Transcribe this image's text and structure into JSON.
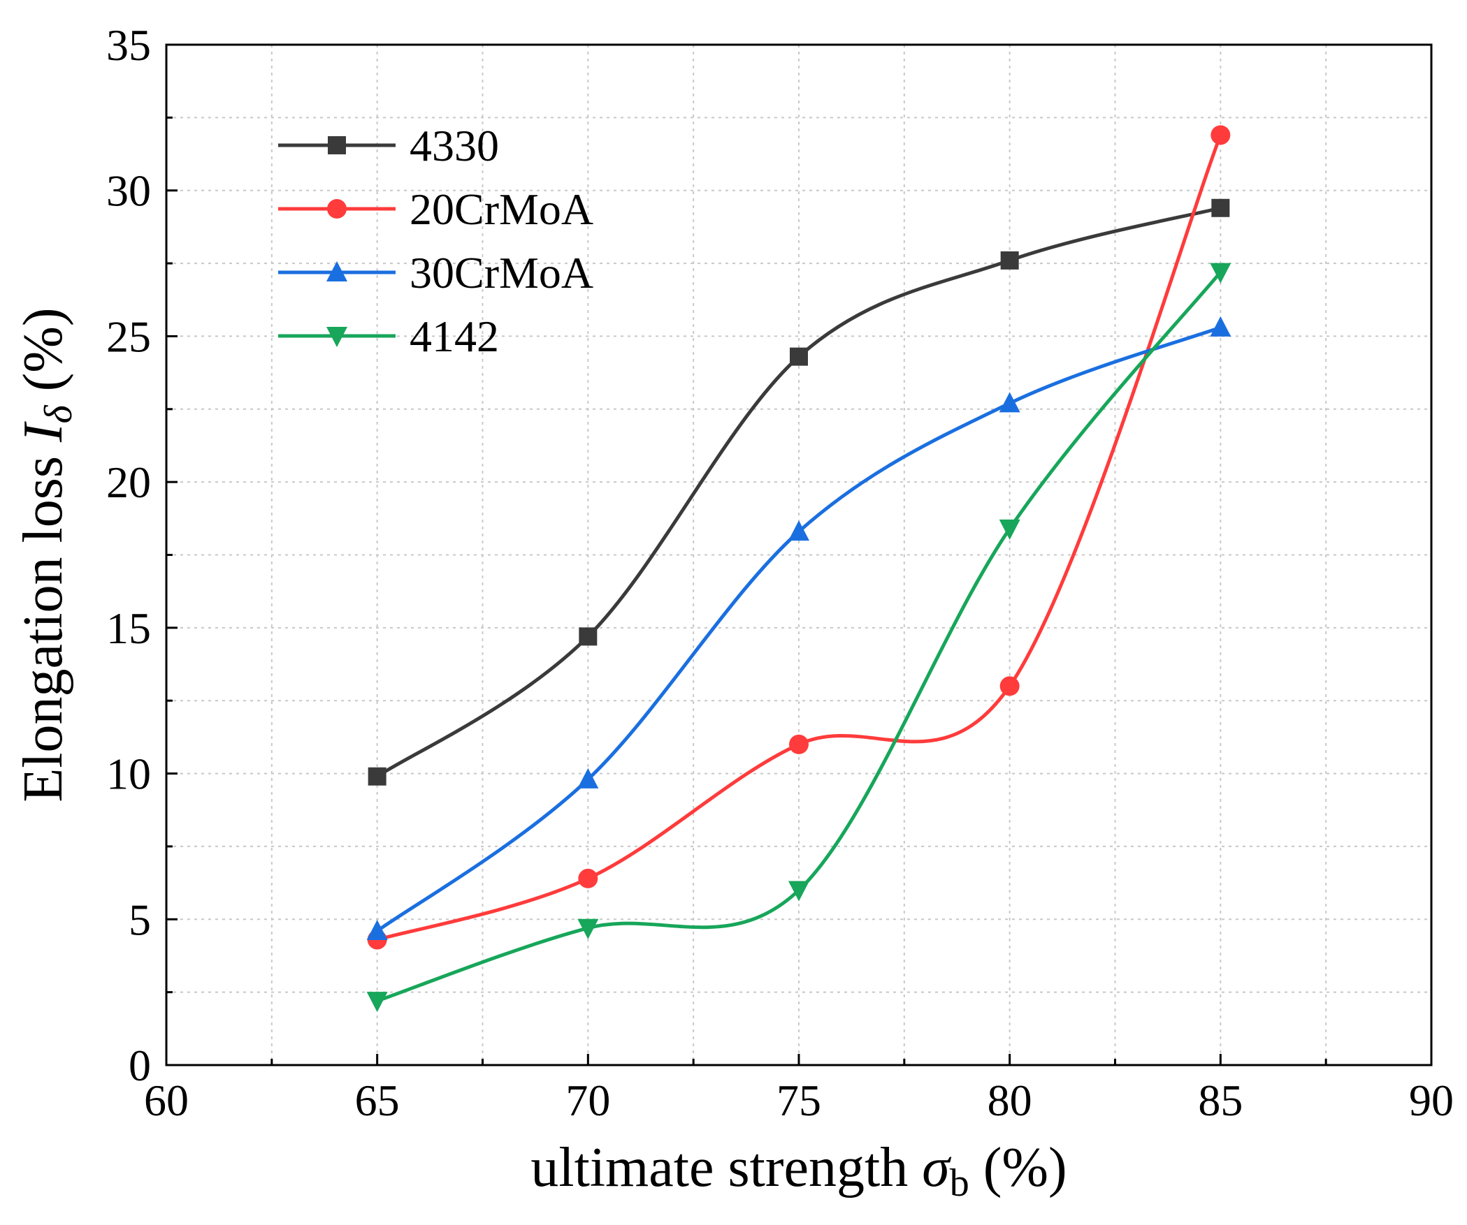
{
  "chart_data": {
    "type": "line",
    "title": "",
    "x": [
      65,
      70,
      75,
      80,
      85
    ],
    "xlim": [
      60,
      90
    ],
    "ylim": [
      0,
      35
    ],
    "xticks": [
      60,
      65,
      70,
      75,
      80,
      85,
      90
    ],
    "yticks": [
      0,
      5,
      10,
      15,
      20,
      25,
      30,
      35
    ],
    "xlabel": {
      "main": "ultimate strength ",
      "symbol": "σ",
      "subscript": "b",
      "suffix": " (%)"
    },
    "ylabel": {
      "main": "Elongation loss ",
      "symbol": "I",
      "subscript": "δ",
      "suffix": " (%)"
    },
    "grid": true,
    "legend_position": "top-left",
    "series": [
      {
        "name": "4330",
        "color": "#3a3a3a",
        "marker": "square",
        "values": [
          9.9,
          14.7,
          24.3,
          27.6,
          29.4
        ]
      },
      {
        "name": "20CrMoA",
        "color": "#ff3b3b",
        "marker": "circle",
        "values": [
          4.3,
          6.4,
          11.0,
          13.0,
          31.9
        ]
      },
      {
        "name": "30CrMoA",
        "color": "#1a6fe0",
        "marker": "triangle-up",
        "values": [
          4.6,
          9.8,
          18.3,
          22.7,
          25.3
        ]
      },
      {
        "name": "4142",
        "color": "#17a65a",
        "marker": "triangle-down",
        "values": [
          2.2,
          4.7,
          6.0,
          18.4,
          27.2
        ]
      }
    ]
  }
}
